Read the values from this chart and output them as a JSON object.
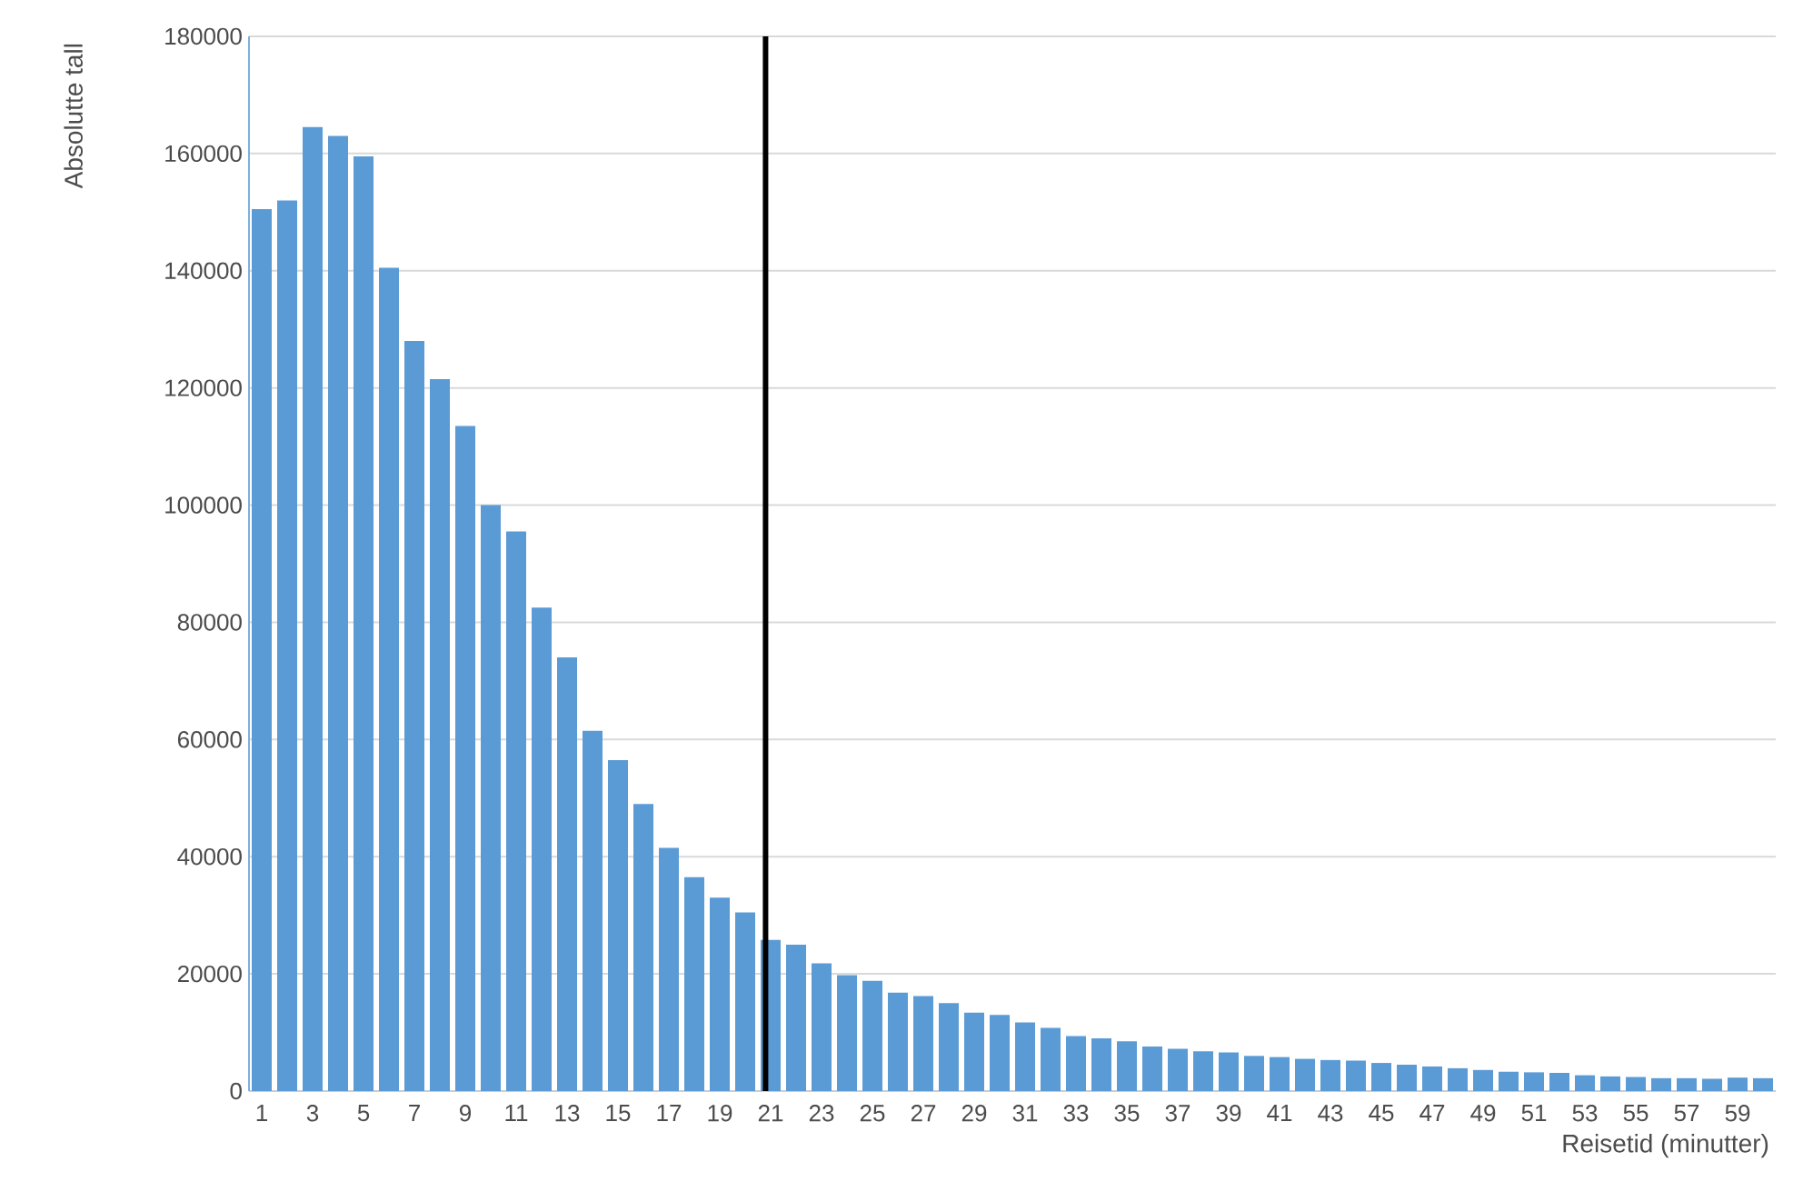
{
  "chart_data": {
    "type": "bar",
    "xlabel": "Reisetid (minutter)",
    "ylabel": "Absolutte tall",
    "x": [
      1,
      2,
      3,
      4,
      5,
      6,
      7,
      8,
      9,
      10,
      11,
      12,
      13,
      14,
      15,
      16,
      17,
      18,
      19,
      20,
      21,
      22,
      23,
      24,
      25,
      26,
      27,
      28,
      29,
      30,
      31,
      32,
      33,
      34,
      35,
      36,
      37,
      38,
      39,
      40,
      41,
      42,
      43,
      44,
      45,
      46,
      47,
      48,
      49,
      50,
      51,
      52,
      53,
      54,
      55,
      56,
      57,
      58,
      59,
      60
    ],
    "values": [
      150500,
      152000,
      164500,
      163000,
      159500,
      140500,
      128000,
      121500,
      113500,
      100000,
      95500,
      82500,
      74000,
      61500,
      56500,
      49000,
      41500,
      36500,
      33000,
      30500,
      25800,
      25000,
      21800,
      19800,
      18800,
      16800,
      16200,
      15000,
      13400,
      13000,
      11700,
      10800,
      9400,
      9000,
      8500,
      7600,
      7200,
      6800,
      6600,
      6000,
      5800,
      5500,
      5300,
      5200,
      4800,
      4500,
      4200,
      3900,
      3600,
      3300,
      3200,
      3100,
      2700,
      2500,
      2400,
      2200,
      2200,
      2100,
      2300,
      2200
    ],
    "color": "#5b9bd5",
    "xlim": [
      0.5,
      60.5
    ],
    "xticks": [
      1,
      3,
      5,
      7,
      9,
      11,
      13,
      15,
      17,
      19,
      21,
      23,
      25,
      27,
      29,
      31,
      33,
      35,
      37,
      39,
      41,
      43,
      45,
      47,
      49,
      51,
      53,
      55,
      57,
      59
    ],
    "ylim": [
      0,
      180000
    ],
    "yticks": [
      0,
      20000,
      40000,
      60000,
      80000,
      100000,
      120000,
      140000,
      160000,
      180000
    ],
    "grid": "y",
    "ref_lines": [
      {
        "axis": "x",
        "value": 20.8,
        "color": "#000000"
      }
    ]
  }
}
